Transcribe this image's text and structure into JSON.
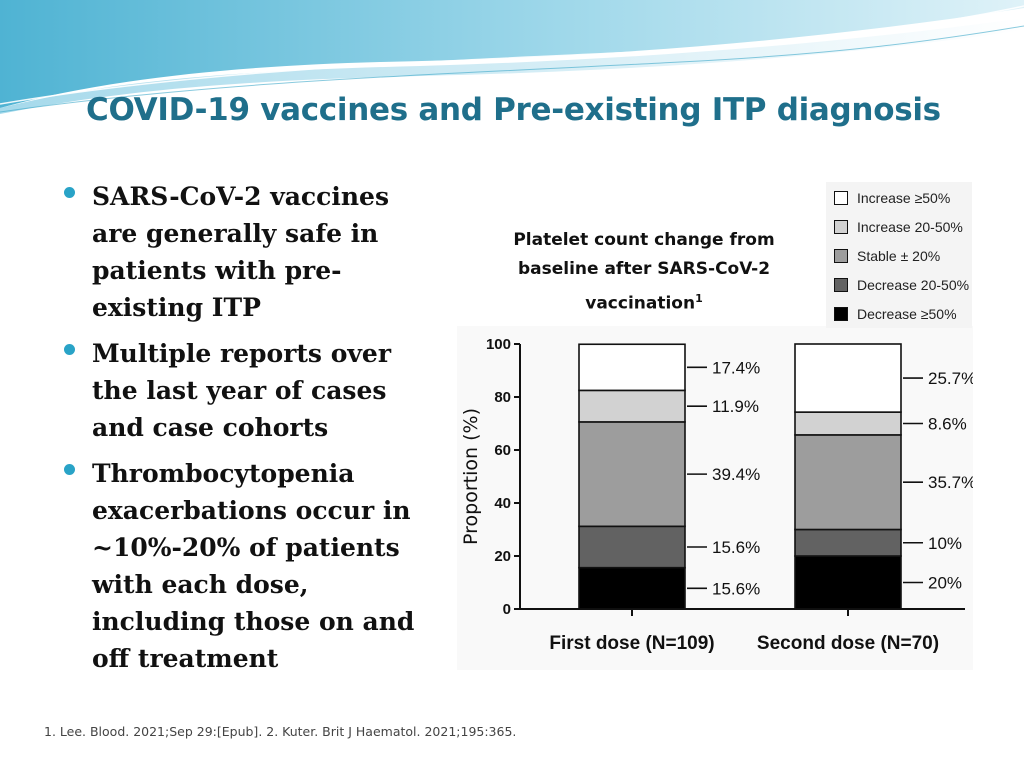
{
  "title": "COVID-19 vaccines and Pre-existing ITP diagnosis",
  "bullets": [
    "SARS-CoV-2 vaccines are generally safe in patients with pre-existing ITP",
    "Multiple reports over the last year of cases and case cohorts",
    "Thrombocytopenia exacerbations occur in ~10%-20% of patients with each dose, including those on and off treatment"
  ],
  "chart_title": "Platelet count change from baseline after SARS-CoV-2 vaccination",
  "chart_title_sup": "1",
  "footer": "1. Lee. Blood. 2021;Sep 29:[Epub]. 2. Kuter. Brit J Haematol. 2021;195:365.",
  "colors": {
    "title": "#1f6f8b",
    "bullet": "#29a3c7"
  },
  "chart_data": {
    "type": "bar",
    "stacked": true,
    "categories": [
      "First dose (N=109)",
      "Second dose (N=70)"
    ],
    "ylabel": "Proportion (%)",
    "ylim": [
      0,
      100
    ],
    "yticks": [
      "0",
      "20",
      "40",
      "60",
      "80",
      "100"
    ],
    "series": [
      {
        "name": "Decrease ≥50%",
        "values": [
          15.6,
          20
        ],
        "labels": [
          "15.6%",
          "20%"
        ],
        "color": "#000000"
      },
      {
        "name": "Decrease 20-50%",
        "values": [
          15.6,
          10
        ],
        "labels": [
          "15.6%",
          "10%"
        ],
        "color": "#626262"
      },
      {
        "name": "Stable ± 20%",
        "values": [
          39.4,
          35.7
        ],
        "labels": [
          "39.4%",
          "35.7%"
        ],
        "color": "#9d9d9d"
      },
      {
        "name": "Increase 20-50%",
        "values": [
          11.9,
          8.6
        ],
        "labels": [
          "11.9%",
          "8.6%"
        ],
        "color": "#d2d2d2"
      },
      {
        "name": "Increase ≥50%",
        "values": [
          17.4,
          25.7
        ],
        "labels": [
          "17.4%",
          "25.7%"
        ],
        "color": "#ffffff"
      }
    ],
    "legend": [
      {
        "label": "Increase ≥50%",
        "color": "#ffffff"
      },
      {
        "label": "Increase 20-50%",
        "color": "#d2d2d2"
      },
      {
        "label": "Stable ± 20%",
        "color": "#9d9d9d"
      },
      {
        "label": "Decrease 20-50%",
        "color": "#626262"
      },
      {
        "label": "Decrease ≥50%",
        "color": "#000000"
      }
    ],
    "legend_position": "top-right"
  }
}
